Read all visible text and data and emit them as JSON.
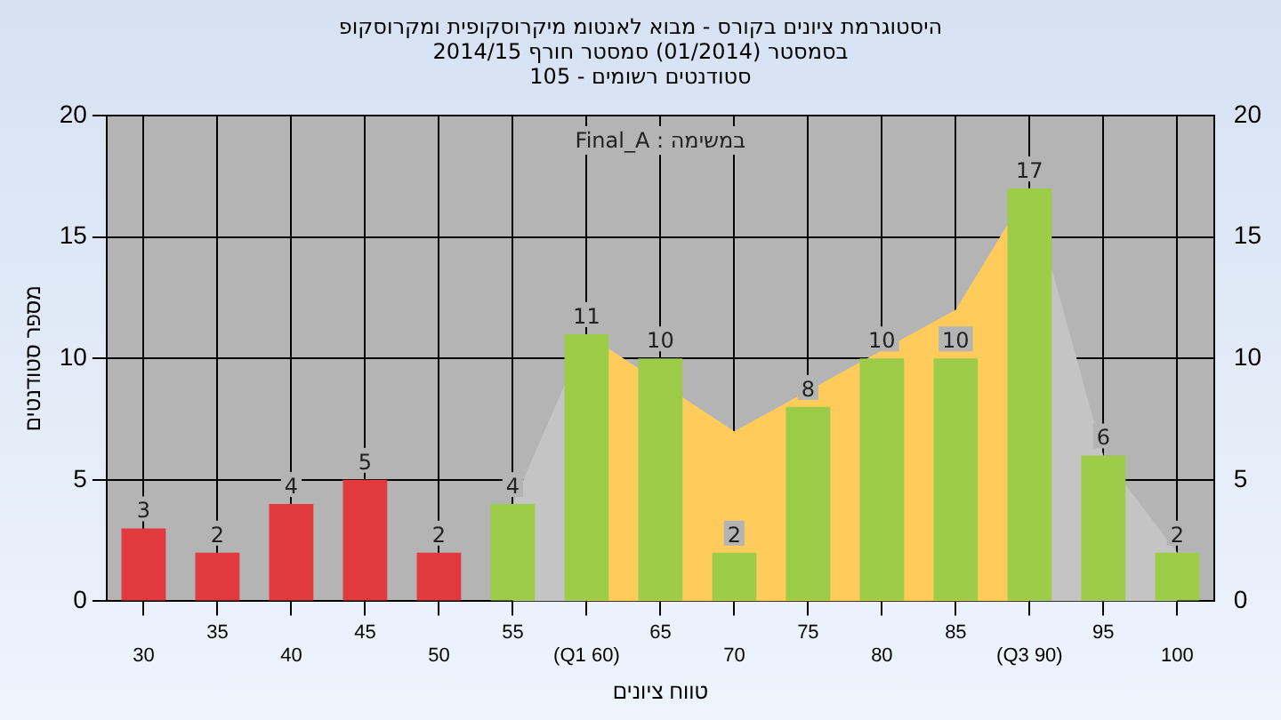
{
  "chart_data": {
    "type": "bar",
    "title": "היסטוגרמת ציונים בקורס - מבוא לאנטומ מיקרוסקופית ומקרוסקופ",
    "subtitle": "בסמסטר (01/2014) סמסטר חורף 2014/15\nסטודנטים רשומים - 105",
    "xlabel": "טווח ציונים",
    "ylabel": "מספר סטודנטים",
    "annotations": [
      "Final_A : במשימה"
    ],
    "categories": [
      "30",
      "35",
      "40",
      "45",
      "50",
      "55",
      "(Q1 60)",
      "65",
      "70",
      "75",
      "80",
      "85",
      "(Q3 90)",
      "95",
      "100"
    ],
    "series": [
      {
        "values": [
          3,
          2,
          4,
          5,
          2,
          4,
          11,
          10,
          2,
          8,
          10,
          10,
          17,
          6,
          2
        ],
        "value_labels": [
          "3",
          "2",
          "4",
          "5",
          "2",
          "4",
          "11",
          "10",
          "2",
          "8",
          "10",
          "10",
          "17",
          "6",
          "2"
        ],
        "colors": [
          "#e03a3e",
          "#e03a3e",
          "#e03a3e",
          "#e03a3e",
          "#e03a3e",
          "#9ccc48",
          "#9ccc48",
          "#9ccc48",
          "#9ccc48",
          "#9ccc48",
          "#9ccc48",
          "#9ccc48",
          "#9ccc48",
          "#9ccc48",
          "#9ccc48"
        ]
      },
      {
        "type": "area",
        "color": "#c4c4c4",
        "values": [
          null,
          null,
          null,
          null,
          null,
          4,
          11,
          null,
          null,
          null,
          null,
          null,
          null,
          null,
          null
        ]
      },
      {
        "type": "area",
        "color": "#c4c4c4",
        "values": [
          null,
          null,
          null,
          null,
          null,
          null,
          null,
          null,
          null,
          null,
          null,
          null,
          17,
          6,
          2
        ]
      },
      {
        "type": "area",
        "color": "#ffcc5c",
        "values": [
          null,
          null,
          null,
          null,
          null,
          null,
          11,
          null,
          7,
          null,
          null,
          12,
          17,
          null,
          null
        ]
      }
    ],
    "ylim": [
      0,
      20
    ],
    "yticks": [
      0,
      5,
      10,
      15,
      20
    ],
    "y2lim": [
      0,
      20
    ],
    "y2ticks": [
      0,
      5,
      10,
      15,
      20
    ],
    "grid": true,
    "legend": false
  }
}
